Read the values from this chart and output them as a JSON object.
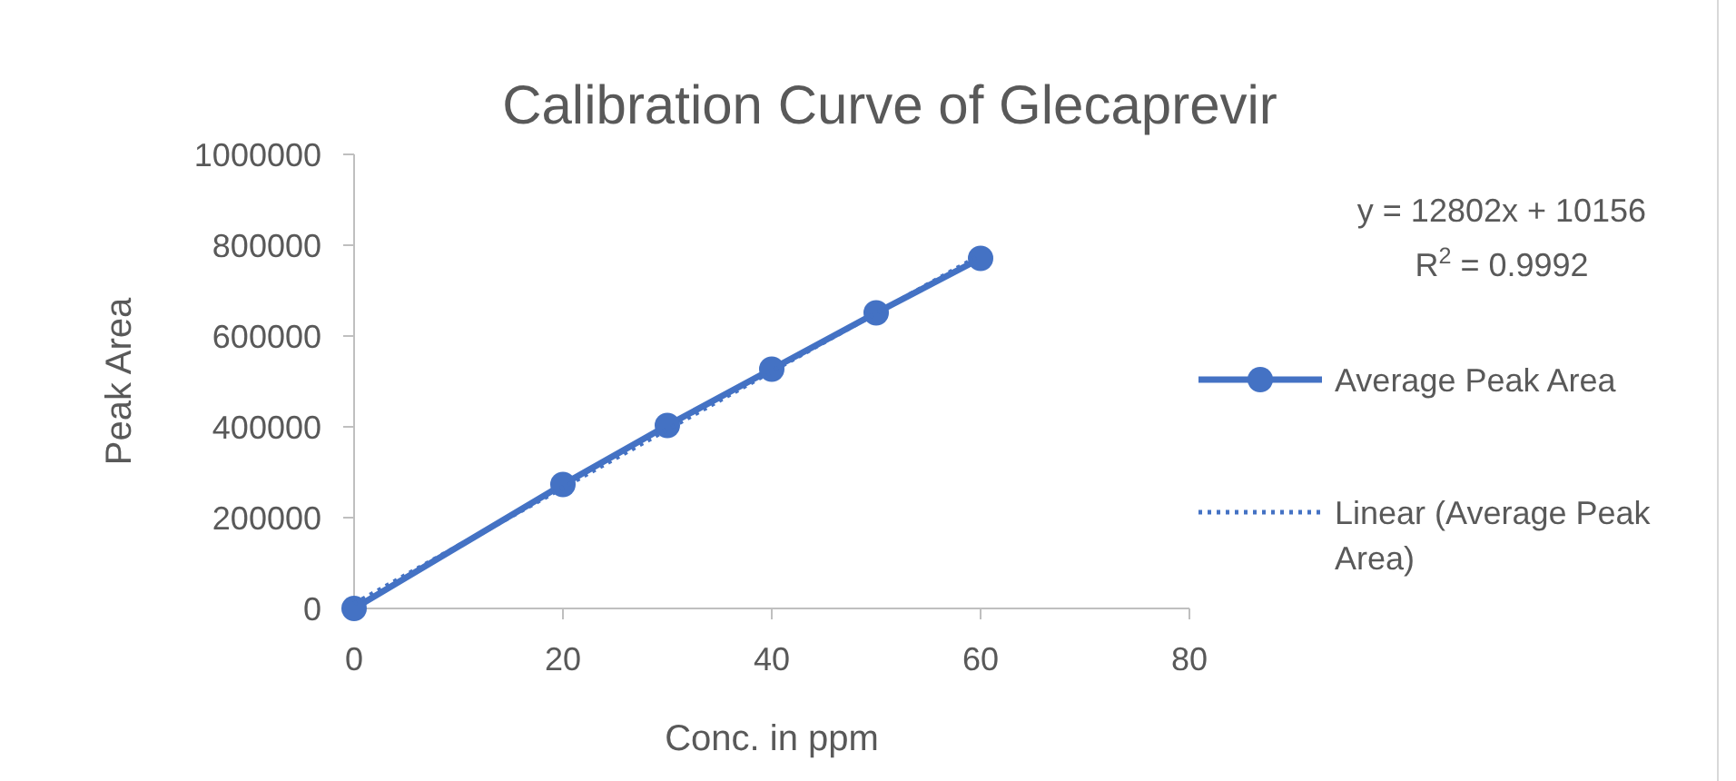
{
  "chart_data": {
    "type": "line",
    "title": "Calibration Curve of Glecaprevir",
    "xlabel": "Conc. in ppm",
    "ylabel": "Peak Area",
    "x": [
      0,
      20,
      30,
      40,
      50,
      60
    ],
    "series": [
      {
        "name": "Average Peak Area",
        "color": "#4472c4",
        "values": [
          0,
          273000,
          403000,
          527000,
          651000,
          771000
        ],
        "marker": "circle",
        "line_style": "solid"
      },
      {
        "name": "Linear (Average Peak Area)",
        "type": "line",
        "color": "#4472c4",
        "x": [
          0,
          60
        ],
        "values": [
          10156,
          778276
        ],
        "marker": "none",
        "line_style": "dotted"
      }
    ],
    "xlim": [
      0,
      80
    ],
    "xticks": [
      0,
      20,
      40,
      60,
      80
    ],
    "ylim": [
      0,
      1000000
    ],
    "yticks": [
      0,
      200000,
      400000,
      600000,
      800000,
      1000000
    ],
    "grid": false,
    "legend": "right",
    "annotations": [
      "y = 12802x + 10156",
      "R$^{2}$ = 0.9992"
    ]
  }
}
